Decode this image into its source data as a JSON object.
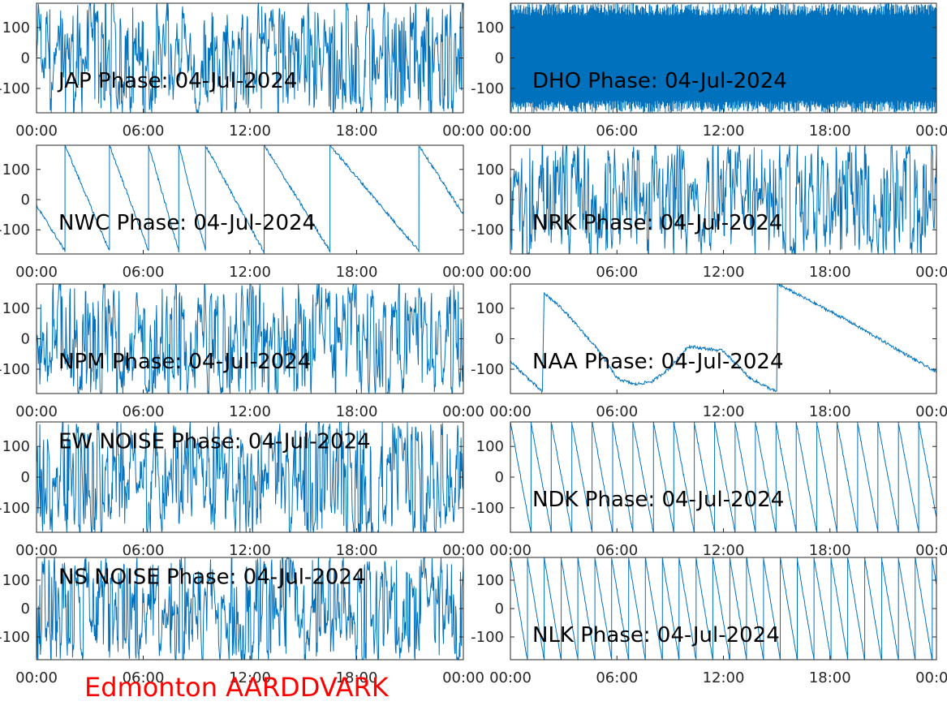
{
  "footer": {
    "label": "Edmonton AARDDVARK",
    "color": "#ff0000"
  },
  "style": {
    "line_color": "#0072bd",
    "frame_color": "#262626"
  },
  "chart_data": [
    {
      "type": "line",
      "title": "JAP Phase: 04-Jul-2024",
      "pattern": "noise",
      "density": 1.0,
      "xticks": [
        "00:00",
        "06:00",
        "12:00",
        "18:00",
        "00:00"
      ],
      "ylim": [
        -180,
        180
      ],
      "yticks": [
        {
          "v": 100,
          "t": "100"
        },
        {
          "v": 0,
          "t": "0"
        },
        {
          "v": -100,
          "t": "-100"
        }
      ]
    },
    {
      "type": "line",
      "title": "DHO Phase: 04-Jul-2024",
      "pattern": "dense-wrap",
      "density": 1.0,
      "xticks": [
        "00:00",
        "06:00",
        "12:00",
        "18:00",
        "00:00"
      ],
      "ylim": [
        -180,
        180
      ],
      "yticks": [
        {
          "v": 100,
          "t": "100"
        },
        {
          "v": 0,
          "t": "0"
        },
        {
          "v": -100,
          "t": "-100"
        }
      ]
    },
    {
      "type": "line",
      "title": "NWC Phase: 04-Jul-2024",
      "pattern": "sawtooth",
      "density": 0.3,
      "x": [
        0,
        1.6,
        1.6,
        4.1,
        4.1,
        6.3,
        6.3,
        8.0,
        8.0,
        9.5,
        9.5,
        12.8,
        12.8,
        16.5,
        16.5,
        21.5,
        21.5,
        24
      ],
      "y": [
        -20,
        -170,
        180,
        -170,
        180,
        -170,
        180,
        -170,
        180,
        -170,
        180,
        -175,
        180,
        -170,
        180,
        -170,
        180,
        -50
      ],
      "xticks": [
        "00:00",
        "06:00",
        "12:00",
        "18:00",
        "00:00"
      ],
      "ylim": [
        -180,
        180
      ],
      "yticks": [
        {
          "v": 100,
          "t": "100"
        },
        {
          "v": 0,
          "t": "0"
        },
        {
          "v": -100,
          "t": "-100"
        }
      ]
    },
    {
      "type": "line",
      "title": "NRK Phase: 04-Jul-2024",
      "pattern": "noise",
      "density": 1.0,
      "xticks": [
        "00:00",
        "06:00",
        "12:00",
        "18:00",
        "00:00"
      ],
      "ylim": [
        -180,
        180
      ],
      "yticks": [
        {
          "v": 100,
          "t": "100"
        },
        {
          "v": 0,
          "t": "0"
        },
        {
          "v": -100,
          "t": "-100"
        }
      ]
    },
    {
      "type": "line",
      "title": "NPM Phase: 04-Jul-2024",
      "pattern": "noise",
      "density": 0.9,
      "xticks": [
        "00:00",
        "06:00",
        "12:00",
        "18:00",
        "00:00"
      ],
      "ylim": [
        -180,
        180
      ],
      "yticks": [
        {
          "v": 100,
          "t": "100"
        },
        {
          "v": 0,
          "t": "0"
        },
        {
          "v": -100,
          "t": "-100"
        }
      ]
    },
    {
      "type": "line",
      "title": "NAA Phase: 04-Jul-2024",
      "pattern": "drift",
      "density": 0.1,
      "x": [
        0,
        1.8,
        1.9,
        2.9,
        5.0,
        6.0,
        7.0,
        8.0,
        9.0,
        10.0,
        12.0,
        13.5,
        15.0,
        15.05,
        19.0,
        24
      ],
      "y": [
        -75,
        -175,
        150,
        100,
        -40,
        -130,
        -150,
        -140,
        -95,
        -25,
        -40,
        -130,
        -175,
        180,
        60,
        -110
      ],
      "xticks": [
        "00:00",
        "06:00",
        "12:00",
        "18:00",
        "00:00"
      ],
      "ylim": [
        -180,
        180
      ],
      "yticks": [
        {
          "v": 100,
          "t": "100"
        },
        {
          "v": 0,
          "t": "0"
        },
        {
          "v": -100,
          "t": "-100"
        }
      ]
    },
    {
      "type": "line",
      "title": "EW NOISE Phase: 04-Jul-2024",
      "pattern": "noise",
      "density": 1.0,
      "xticks": [
        "00:00",
        "06:00",
        "12:00",
        "18:00",
        "00:00"
      ],
      "ylim": [
        -180,
        180
      ],
      "yticks": [
        {
          "v": 100,
          "t": "100"
        },
        {
          "v": 0,
          "t": "0"
        },
        {
          "v": -100,
          "t": "-100"
        }
      ]
    },
    {
      "type": "line",
      "title": "NDK Phase: 04-Jul-2024",
      "pattern": "regular-wrap",
      "period_hours": 1.15,
      "density": 0.2,
      "xticks": [
        "00:00",
        "06:00",
        "12:00",
        "18:00",
        "00:00"
      ],
      "ylim": [
        -180,
        180
      ],
      "yticks": [
        {
          "v": 100,
          "t": "100"
        },
        {
          "v": 0,
          "t": "0"
        },
        {
          "v": -100,
          "t": "-100"
        }
      ]
    },
    {
      "type": "line",
      "title": "NS NOISE Phase: 04-Jul-2024",
      "pattern": "noise",
      "density": 0.95,
      "xticks": [
        "00:00",
        "06:00",
        "12:00",
        "18:00",
        "00:00"
      ],
      "ylim": [
        -180,
        180
      ],
      "yticks": [
        {
          "v": 100,
          "t": "100"
        },
        {
          "v": 0,
          "t": "0"
        },
        {
          "v": -100,
          "t": "-100"
        }
      ]
    },
    {
      "type": "line",
      "title": "NLK Phase: 04-Jul-2024",
      "pattern": "regular-wrap",
      "period_hours": 0.95,
      "density": 0.25,
      "xticks": [
        "00:00",
        "06:00",
        "12:00",
        "18:00",
        "00:00"
      ],
      "ylim": [
        -180,
        180
      ],
      "yticks": [
        {
          "v": 100,
          "t": "100"
        },
        {
          "v": 0,
          "t": "0"
        },
        {
          "v": -100,
          "t": "-100"
        }
      ]
    }
  ]
}
